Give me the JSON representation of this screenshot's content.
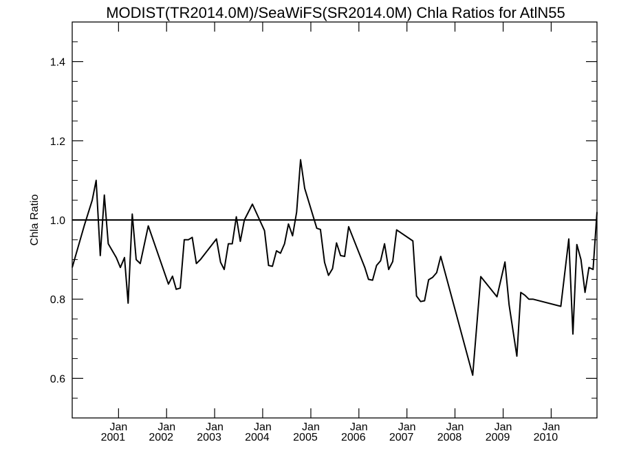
{
  "chart_data": {
    "type": "line",
    "title": "MODIST(TR2014.0M)/SeaWiFS(SR2014.0M)  Chla Ratios for AtlN55",
    "xlabel": "",
    "ylabel": "Chla Ratio",
    "xlim": [
      "2000-01-15",
      "2010-12-15"
    ],
    "ylim": [
      0.5,
      1.5
    ],
    "y_ticks": [
      0.6,
      0.8,
      1.0,
      1.2,
      1.4
    ],
    "y_tick_labels": [
      "0.6",
      "0.8",
      "1.0",
      "1.2",
      "1.4"
    ],
    "x_ticks": [
      {
        "date": "2001-01-01",
        "line1": "Jan",
        "line2": "2001"
      },
      {
        "date": "2002-01-01",
        "line1": "Jan",
        "line2": "2002"
      },
      {
        "date": "2003-01-01",
        "line1": "Jan",
        "line2": "2003"
      },
      {
        "date": "2004-01-01",
        "line1": "Jan",
        "line2": "2004"
      },
      {
        "date": "2005-01-01",
        "line1": "Jan",
        "line2": "2005"
      },
      {
        "date": "2006-01-01",
        "line1": "Jan",
        "line2": "2006"
      },
      {
        "date": "2007-01-01",
        "line1": "Jan",
        "line2": "2007"
      },
      {
        "date": "2008-01-01",
        "line1": "Jan",
        "line2": "2008"
      },
      {
        "date": "2009-01-01",
        "line1": "Jan",
        "line2": "2009"
      },
      {
        "date": "2010-01-01",
        "line1": "Jan",
        "line2": "2010"
      }
    ],
    "reference_line": {
      "y": 1.0
    },
    "grid": false,
    "series": [
      {
        "x": [
          "2000-01-15",
          "2000-04-15",
          "2000-06-15",
          "2000-07-15",
          "2000-08-15",
          "2000-09-15",
          "2000-10-15",
          "2000-12-15",
          "2001-01-15",
          "2001-02-15",
          "2001-03-15",
          "2001-04-15",
          "2001-05-15",
          "2001-06-15",
          "2001-08-15",
          "2002-01-15",
          "2002-02-15",
          "2002-03-15",
          "2002-04-15",
          "2002-05-15",
          "2002-06-15",
          "2002-07-15",
          "2002-08-15",
          "2002-09-15",
          "2003-01-15",
          "2003-02-15",
          "2003-03-15",
          "2003-04-15",
          "2003-05-15",
          "2003-06-15",
          "2003-07-15",
          "2003-08-15",
          "2003-10-15",
          "2004-01-15",
          "2004-02-15",
          "2004-03-15",
          "2004-04-15",
          "2004-05-15",
          "2004-06-15",
          "2004-07-15",
          "2004-08-15",
          "2004-09-15",
          "2004-10-15",
          "2004-11-15",
          "2005-02-15",
          "2005-03-15",
          "2005-04-15",
          "2005-05-15",
          "2005-06-15",
          "2005-07-15",
          "2005-08-15",
          "2005-09-15",
          "2005-10-15",
          "2006-02-15",
          "2006-03-15",
          "2006-04-15",
          "2006-05-15",
          "2006-06-15",
          "2006-07-15",
          "2006-08-15",
          "2006-09-15",
          "2006-10-15",
          "2007-02-15",
          "2007-03-15",
          "2007-04-15",
          "2007-05-15",
          "2007-06-15",
          "2007-07-15",
          "2007-08-15",
          "2007-09-15",
          "2008-05-15",
          "2008-07-15",
          "2008-11-15",
          "2009-01-15",
          "2009-02-15",
          "2009-04-15",
          "2009-05-15",
          "2009-06-15",
          "2009-07-15",
          "2009-08-15",
          "2010-03-15",
          "2010-05-15",
          "2010-06-15",
          "2010-07-15",
          "2010-08-15",
          "2010-09-15",
          "2010-10-15",
          "2010-11-15",
          "2010-12-15"
        ],
        "values": [
          0.88,
          0.985,
          1.05,
          1.1,
          0.91,
          1.063,
          0.94,
          0.905,
          0.88,
          0.905,
          0.79,
          1.015,
          0.9,
          0.89,
          0.985,
          0.838,
          0.858,
          0.825,
          0.828,
          0.95,
          0.95,
          0.956,
          0.89,
          0.9,
          0.952,
          0.893,
          0.875,
          0.94,
          0.94,
          1.008,
          0.946,
          1.0,
          1.04,
          0.973,
          0.885,
          0.883,
          0.922,
          0.916,
          0.94,
          0.99,
          0.96,
          1.02,
          1.152,
          1.08,
          0.979,
          0.976,
          0.893,
          0.86,
          0.877,
          0.942,
          0.91,
          0.908,
          0.983,
          0.88,
          0.85,
          0.848,
          0.885,
          0.897,
          0.94,
          0.875,
          0.895,
          0.975,
          0.947,
          0.808,
          0.794,
          0.796,
          0.849,
          0.855,
          0.867,
          0.908,
          0.608,
          0.857,
          0.806,
          0.894,
          0.786,
          0.656,
          0.817,
          0.81,
          0.8,
          0.8,
          0.782,
          0.952,
          0.712,
          0.938,
          0.9,
          0.817,
          0.88,
          0.875,
          1.02
        ]
      }
    ]
  }
}
